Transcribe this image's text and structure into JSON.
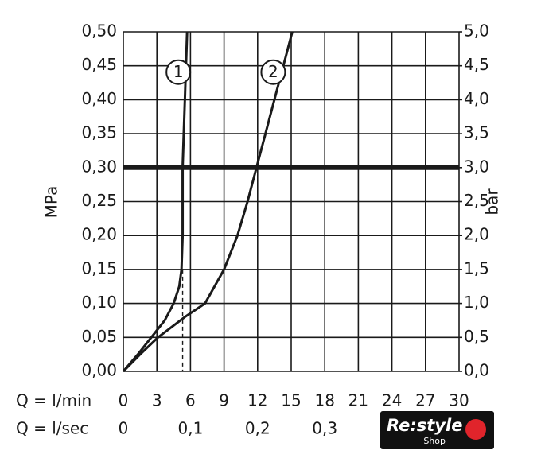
{
  "chart_data": {
    "type": "line",
    "y_label": "MPa",
    "y2_label": "bar",
    "x_label": "Q = l/min",
    "x2_label": "Q = l/sec",
    "xlim": [
      0,
      30
    ],
    "xticks": [
      0,
      3,
      6,
      9,
      12,
      15,
      18,
      21,
      24,
      27,
      30
    ],
    "x2lim": [
      0,
      0.5
    ],
    "x2ticks": [
      0,
      {
        "value": 0.1,
        "label": "0,1"
      },
      {
        "value": 0.2,
        "label": "0,2"
      },
      {
        "value": 0.3,
        "label": "0,3"
      }
    ],
    "ylim": [
      0,
      0.5
    ],
    "yticks": [
      {
        "value": 0,
        "label": "0,00"
      },
      {
        "value": 0.05,
        "label": "0,05"
      },
      {
        "value": 0.1,
        "label": "0,10"
      },
      {
        "value": 0.15,
        "label": "0,15"
      },
      {
        "value": 0.2,
        "label": "0,20"
      },
      {
        "value": 0.25,
        "label": "0,25"
      },
      {
        "value": 0.3,
        "label": "0,30"
      },
      {
        "value": 0.35,
        "label": "0,35"
      },
      {
        "value": 0.4,
        "label": "0,40"
      },
      {
        "value": 0.45,
        "label": "0,45"
      },
      {
        "value": 0.5,
        "label": "0,50"
      }
    ],
    "y2lim": [
      0,
      5
    ],
    "y2ticks": [
      {
        "value": 0,
        "label": "0,0"
      },
      {
        "value": 0.5,
        "label": "0,5"
      },
      {
        "value": 1,
        "label": "1,0"
      },
      {
        "value": 1.5,
        "label": "1,5"
      },
      {
        "value": 2,
        "label": "2,0"
      },
      {
        "value": 2.5,
        "label": "2,5"
      },
      {
        "value": 3,
        "label": "3,0"
      },
      {
        "value": 3.5,
        "label": "3,5"
      },
      {
        "value": 4,
        "label": "4,0"
      },
      {
        "value": 4.5,
        "label": "4,5"
      },
      {
        "value": 5,
        "label": "5,0"
      }
    ],
    "grid": true,
    "hline": 0.3,
    "series": [
      {
        "name": "1",
        "color": "#1a1a1a",
        "x": [
          0,
          1.3,
          2.5,
          3.7,
          4.5,
          5.0,
          5.2,
          5.3,
          5.3,
          5.5,
          5.7
        ],
        "values": [
          0,
          0.025,
          0.05,
          0.075,
          0.1,
          0.125,
          0.15,
          0.2,
          0.3,
          0.4,
          0.5
        ]
      },
      {
        "name": "2",
        "color": "#1a1a1a",
        "x": [
          0,
          1.5,
          3.1,
          5.5,
          7.3,
          9.0,
          10.2,
          11.1,
          11.9,
          12.7,
          13.5,
          14.3,
          15.1
        ],
        "values": [
          0,
          0.025,
          0.05,
          0.08,
          0.1,
          0.15,
          0.2,
          0.25,
          0.3,
          0.35,
          0.4,
          0.45,
          0.5
        ]
      }
    ],
    "guides": [
      {
        "x": 5.3,
        "y": 0.15
      },
      {
        "x": 12,
        "y": 0.3
      }
    ],
    "watermark": {
      "text": "Re:style",
      "sub": "Shop"
    }
  }
}
